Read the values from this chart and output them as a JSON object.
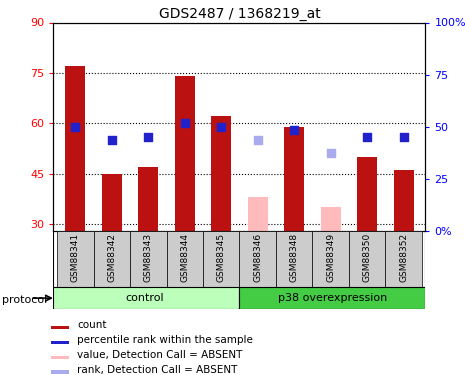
{
  "title": "GDS2487 / 1368219_at",
  "samples": [
    "GSM88341",
    "GSM88342",
    "GSM88343",
    "GSM88344",
    "GSM88345",
    "GSM88346",
    "GSM88348",
    "GSM88349",
    "GSM88350",
    "GSM88352"
  ],
  "ylim_left": [
    28,
    90
  ],
  "ylim_right": [
    0,
    100
  ],
  "yticks_left": [
    30,
    45,
    60,
    75,
    90
  ],
  "yticks_right": [
    0,
    25,
    50,
    75,
    100
  ],
  "ytick_labels_left": [
    "30",
    "45",
    "60",
    "75",
    "90"
  ],
  "ytick_labels_right": [
    "0%",
    "25",
    "50",
    "75",
    "100%"
  ],
  "count_values": [
    77,
    45,
    47,
    74,
    62,
    null,
    59,
    null,
    50,
    46
  ],
  "count_absent_values": [
    null,
    null,
    null,
    null,
    null,
    38,
    null,
    35,
    null,
    null
  ],
  "rank_values": [
    59,
    55,
    56,
    60,
    59,
    null,
    58,
    null,
    56,
    56
  ],
  "rank_absent_values": [
    null,
    null,
    null,
    null,
    null,
    55,
    null,
    51,
    null,
    null
  ],
  "bar_color_present": "#bb1111",
  "bar_color_absent": "#ffbbbb",
  "dot_color_present": "#2222cc",
  "dot_color_absent": "#aaaaee",
  "group_control_color": "#bbffbb",
  "group_p38_color": "#44cc44",
  "tick_bg_color": "#cccccc",
  "bar_width": 0.55,
  "dot_size": 35,
  "legend_items": [
    {
      "color": "#bb1111",
      "label": "count"
    },
    {
      "color": "#2222cc",
      "label": "percentile rank within the sample"
    },
    {
      "color": "#ffbbbb",
      "label": "value, Detection Call = ABSENT"
    },
    {
      "color": "#aaaaee",
      "label": "rank, Detection Call = ABSENT"
    }
  ]
}
